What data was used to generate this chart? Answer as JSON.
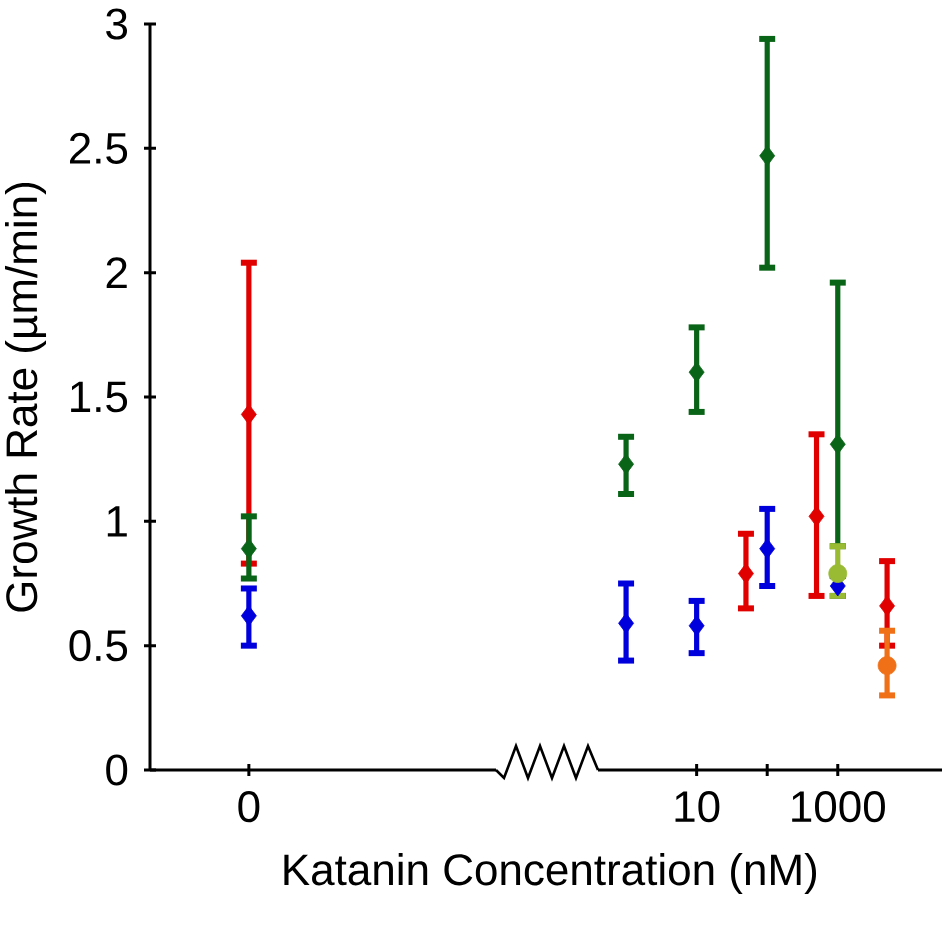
{
  "chart_data": [
    {
      "type": "scatter",
      "ylabel": "Growth Rate (µm/min)",
      "categories": [
        "0"
      ],
      "ylim": [
        0,
        3
      ],
      "yticks": [
        0,
        0.5,
        1,
        1.5,
        2,
        2.5,
        3
      ],
      "series": [
        {
          "color": "#e00000",
          "marker": "diamond",
          "values": [
            1.43
          ],
          "errors": [
            [
              0.83,
              2.04
            ]
          ]
        },
        {
          "color": "#0a6418",
          "marker": "diamond",
          "values": [
            0.89
          ],
          "errors": [
            [
              0.77,
              1.02
            ]
          ]
        },
        {
          "color": "#0000dd",
          "marker": "diamond",
          "values": [
            0.62
          ],
          "errors": [
            [
              0.5,
              0.73
            ]
          ]
        }
      ]
    },
    {
      "type": "scatter",
      "xlabel": "Katanin Concentration (nM)",
      "log": "x",
      "xlim": [
        0.4,
        30000
      ],
      "xticks": [
        10,
        {
          "value": 100,
          "label": null
        },
        1000
      ],
      "ylim": [
        0,
        3
      ],
      "tick_labels": "x",
      "series": [
        {
          "color": "#0a6418",
          "marker": "diamond",
          "x": [
            1,
            10,
            100,
            1000
          ],
          "values": [
            1.23,
            1.6,
            2.47,
            1.31
          ],
          "errors": [
            [
              1.11,
              1.34
            ],
            [
              1.44,
              1.78
            ],
            [
              2.02,
              2.94
            ],
            [
              0.9,
              1.96
            ]
          ]
        },
        {
          "color": "#0000dd",
          "marker": "diamond",
          "x": [
            1,
            10,
            100,
            1000
          ],
          "values": [
            0.59,
            0.58,
            0.89,
            0.74
          ],
          "errors": [
            [
              0.44,
              0.75
            ],
            [
              0.47,
              0.68
            ],
            [
              0.74,
              1.05
            ],
            [
              0.7,
              0.78
            ]
          ]
        },
        {
          "color": "#e00000",
          "marker": "diamond",
          "x": [
            50,
            500,
            5000
          ],
          "values": [
            0.79,
            1.02,
            0.66
          ],
          "errors": [
            [
              0.65,
              0.95
            ],
            [
              0.7,
              1.35
            ],
            [
              0.5,
              0.84
            ]
          ]
        },
        {
          "color": "#99bb33",
          "marker": "circle",
          "x": [
            1000
          ],
          "values": [
            0.79
          ],
          "errors": [
            [
              0.7,
              0.9
            ]
          ]
        },
        {
          "color": "#f07018",
          "marker": "circle",
          "x": [
            5000
          ],
          "values": [
            0.42
          ],
          "errors": [
            [
              0.3,
              0.56
            ]
          ]
        }
      ]
    }
  ]
}
